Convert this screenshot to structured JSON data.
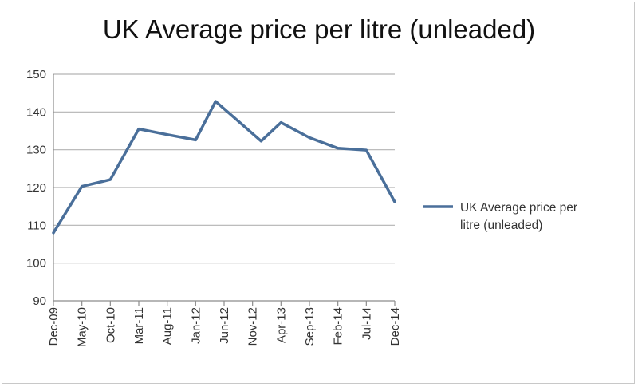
{
  "chart_data": {
    "type": "line",
    "title": "UK Average price per litre (unleaded)",
    "xlabel": "",
    "ylabel": "",
    "categories": [
      "Dec-09",
      "May-10",
      "Oct-10",
      "Mar-11",
      "Aug-11",
      "Jan-12",
      "Jun-12",
      "Nov-12",
      "Apr-13",
      "Sep-13",
      "Feb-14",
      "Jul-14",
      "Dec-14"
    ],
    "y_ticks": [
      "90",
      "100",
      "110",
      "120",
      "130",
      "140",
      "150"
    ],
    "ylim": [
      90,
      150
    ],
    "grid": true,
    "legend_position": "right",
    "series": [
      {
        "name": "UK Average price per litre (unleaded)",
        "legend_lines": [
          "UK Average price per",
          "litre (unleaded)"
        ],
        "color": "#4a6f9a",
        "x": [
          0,
          1,
          2,
          3,
          4,
          5,
          5.7,
          7.3,
          8,
          9,
          10,
          11,
          12
        ],
        "values": [
          108,
          120.3,
          122.1,
          135.5,
          134,
          132.6,
          142.8,
          132.3,
          137.2,
          133.2,
          130.4,
          129.9,
          116.2
        ]
      }
    ]
  }
}
